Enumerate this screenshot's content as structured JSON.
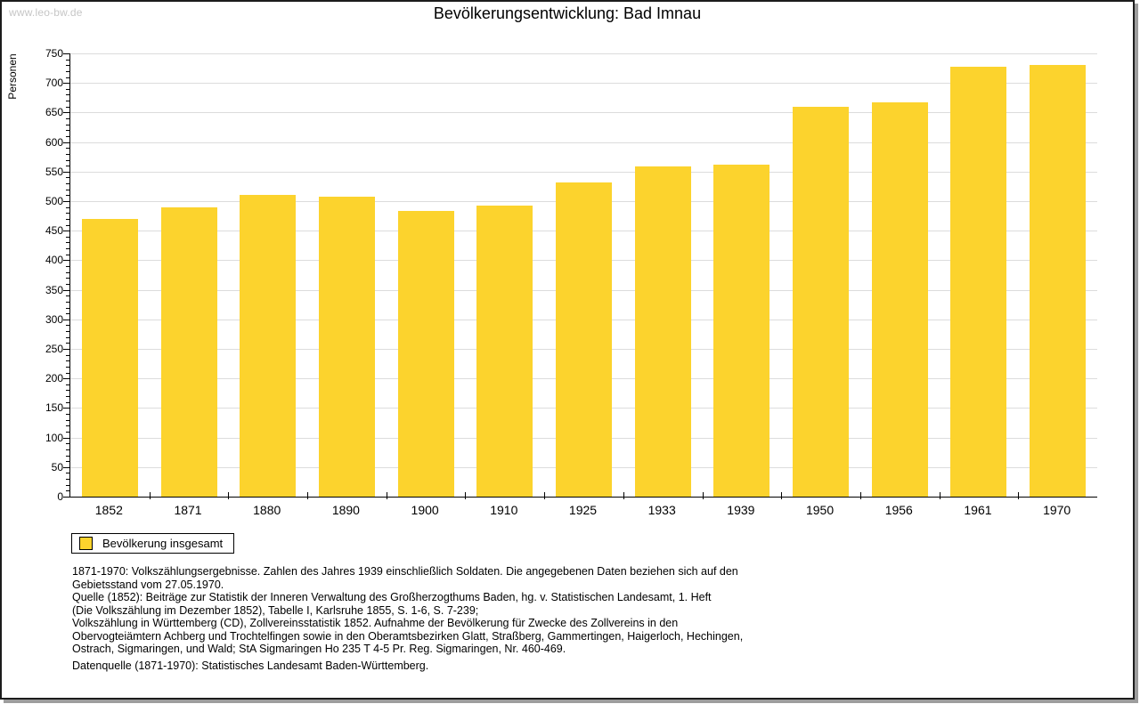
{
  "watermark": "www.leo-bw.de",
  "chart_data": {
    "type": "bar",
    "title": "Bevölkerungsentwicklung: Bad Imnau",
    "ylabel": "Personen",
    "xlabel": "",
    "categories": [
      "1852",
      "1871",
      "1880",
      "1890",
      "1900",
      "1910",
      "1925",
      "1933",
      "1939",
      "1950",
      "1956",
      "1961",
      "1970"
    ],
    "values": [
      470,
      490,
      510,
      508,
      483,
      492,
      531,
      559,
      562,
      660,
      667,
      727,
      731
    ],
    "series_name": "Bevölkerung insgesamt",
    "ylim": [
      0,
      750
    ],
    "ytick_step": 50,
    "y_minor_tick_step": 10,
    "grid": "horizontal",
    "legend_position": "bottom-left",
    "bar_color": "#fcd32d",
    "grid_color": "#dcdcdc",
    "axis_color": "#000000"
  },
  "legend": {
    "label": "Bevölkerung insgesamt"
  },
  "footnote_lines": [
    "1871-1970: Volkszählungsergebnisse. Zahlen des Jahres 1939 einschließlich Soldaten. Die angegebenen Daten beziehen sich auf den",
    "Gebietsstand vom 27.05.1970.",
    "Quelle (1852): Beiträge zur Statistik der Inneren Verwaltung des Großherzogthums Baden, hg. v. Statistischen Landesamt, 1. Heft",
    "(Die Volkszählung im Dezember 1852), Tabelle I, Karlsruhe 1855, S. 1-6, S. 7-239;",
    "Volkszählung in Württemberg (CD), Zollvereinsstatistik 1852. Aufnahme der Bevölkerung für Zwecke des Zollvereins in den",
    "Obervogteiämtern Achberg und Trochtelfingen sowie in den Oberamtsbezirken Glatt, Straßberg, Gammertingen, Haigerloch, Hechingen,",
    "Ostrach, Sigmaringen, und Wald; StA Sigmaringen Ho 235 T 4-5 Pr. Reg. Sigmaringen, Nr. 460-469."
  ],
  "datasource": "Datenquelle (1871-1970): Statistisches Landesamt Baden-Württemberg."
}
